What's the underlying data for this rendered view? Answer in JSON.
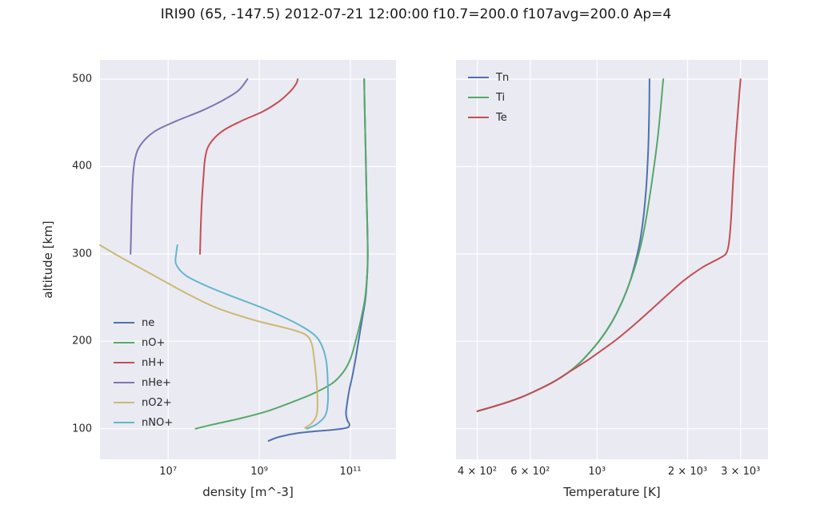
{
  "title": "IRI90 (65, -147.5) 2012-07-21 12:00:00 f10.7=200.0 f107avg=200.0 Ap=4",
  "style": {
    "axes_background": "#EAEAF2",
    "grid_color": "#FFFFFF",
    "text_color": "#262626"
  },
  "chart_data": [
    {
      "type": "line",
      "title": "",
      "xlabel": "density [m^-3]",
      "ylabel": "altitude [km]",
      "xscale": "log",
      "yscale": "linear",
      "xlim": [
        320000,
        1000000000000.0
      ],
      "ylim": [
        65,
        522
      ],
      "grid": true,
      "legend_position": "lower left",
      "xticks": [
        {
          "v": 10000000.0,
          "label": "10⁷"
        },
        {
          "v": 1000000000.0,
          "label": "10⁹"
        },
        {
          "v": 100000000000.0,
          "label": "10¹¹"
        }
      ],
      "yticks": [
        {
          "v": 100,
          "label": "100"
        },
        {
          "v": 200,
          "label": "200"
        },
        {
          "v": 300,
          "label": "300"
        },
        {
          "v": 400,
          "label": "400"
        },
        {
          "v": 500,
          "label": "500"
        }
      ],
      "series": [
        {
          "name": "ne",
          "color": "#4C72B0",
          "points": [
            [
              1600000000.0,
              86
            ],
            [
              2500000000.0,
              90
            ],
            [
              7000000000.0,
              95
            ],
            [
              65000000000.0,
              100
            ],
            [
              95000000000.0,
              104
            ],
            [
              85000000000.0,
              110
            ],
            [
              80000000000.0,
              118
            ],
            [
              85000000000.0,
              130
            ],
            [
              95000000000.0,
              145
            ],
            [
              110000000000.0,
              160
            ],
            [
              130000000000.0,
              180
            ],
            [
              150000000000.0,
              200
            ],
            [
              180000000000.0,
              225
            ],
            [
              215000000000.0,
              250
            ],
            [
              235000000000.0,
              280
            ],
            [
              240000000000.0,
              300
            ],
            [
              235000000000.0,
              330
            ],
            [
              225000000000.0,
              370
            ],
            [
              215000000000.0,
              420
            ],
            [
              205000000000.0,
              470
            ],
            [
              200000000000.0,
              500
            ]
          ]
        },
        {
          "name": "nO+",
          "color": "#55A868",
          "points": [
            [
              40000000.0,
              100
            ],
            [
              100000000.0,
              105
            ],
            [
              400000000.0,
              112
            ],
            [
              1500000000.0,
              120
            ],
            [
              5000000000.0,
              130
            ],
            [
              15000000000.0,
              140
            ],
            [
              40000000000.0,
              152
            ],
            [
              70000000000.0,
              165
            ],
            [
              100000000000.0,
              180
            ],
            [
              130000000000.0,
              200
            ],
            [
              170000000000.0,
              225
            ],
            [
              210000000000.0,
              250
            ],
            [
              235000000000.0,
              280
            ],
            [
              240000000000.0,
              300
            ],
            [
              235000000000.0,
              330
            ],
            [
              225000000000.0,
              370
            ],
            [
              215000000000.0,
              420
            ],
            [
              205000000000.0,
              470
            ],
            [
              200000000000.0,
              500
            ]
          ]
        },
        {
          "name": "nH+",
          "color": "#C44E52",
          "points": [
            [
              50000000.0,
              300
            ],
            [
              52000000.0,
              330
            ],
            [
              55000000.0,
              360
            ],
            [
              60000000.0,
              390
            ],
            [
              65000000.0,
              410
            ],
            [
              80000000.0,
              425
            ],
            [
              150000000.0,
              440
            ],
            [
              400000000.0,
              452
            ],
            [
              1200000000.0,
              463
            ],
            [
              2800000000.0,
              475
            ],
            [
              5000000000.0,
              487
            ],
            [
              6500000000.0,
              495
            ],
            [
              7000000000.0,
              500
            ]
          ]
        },
        {
          "name": "nHe+",
          "color": "#8172B2",
          "points": [
            [
              1500000.0,
              300
            ],
            [
              1550000.0,
              330
            ],
            [
              1600000.0,
              360
            ],
            [
              1700000.0,
              390
            ],
            [
              1900000.0,
              410
            ],
            [
              2500000.0,
              425
            ],
            [
              5000000.0,
              440
            ],
            [
              15000000.0,
              452
            ],
            [
              50000000.0,
              463
            ],
            [
              150000000.0,
              475
            ],
            [
              350000000.0,
              487
            ],
            [
              550000000.0,
              500
            ]
          ]
        },
        {
          "name": "nO2+",
          "color": "#CCB974",
          "points": [
            [
              320000.0,
              310
            ],
            [
              1000000.0,
              295
            ],
            [
              5000000.0,
              275
            ],
            [
              25000000.0,
              255
            ],
            [
              120000000.0,
              238
            ],
            [
              800000000.0,
              224
            ],
            [
              4000000000.0,
              215
            ],
            [
              10000000000.0,
              208
            ],
            [
              14000000000.0,
              198
            ],
            [
              16000000000.0,
              180
            ],
            [
              18000000000.0,
              155
            ],
            [
              19000000000.0,
              130
            ],
            [
              18000000000.0,
              115
            ],
            [
              14000000000.0,
              106
            ],
            [
              10000000000.0,
              101
            ]
          ]
        },
        {
          "name": "nNO+",
          "color": "#64B5CD",
          "points": [
            [
              16000000.0,
              310
            ],
            [
              15000000.0,
              300
            ],
            [
              15000000.0,
              288
            ],
            [
              25000000.0,
              275
            ],
            [
              80000000.0,
              262
            ],
            [
              300000000.0,
              250
            ],
            [
              1200000000.0,
              238
            ],
            [
              4000000000.0,
              226
            ],
            [
              10000000000.0,
              215
            ],
            [
              18000000000.0,
              205
            ],
            [
              25000000000.0,
              192
            ],
            [
              30000000000.0,
              175
            ],
            [
              32000000000.0,
              150
            ],
            [
              32000000000.0,
              130
            ],
            [
              28000000000.0,
              115
            ],
            [
              18000000000.0,
              105
            ],
            [
              11000000000.0,
              100
            ]
          ]
        }
      ]
    },
    {
      "type": "line",
      "title": "",
      "xlabel": "Temperature [K]",
      "ylabel": "",
      "xscale": "log",
      "yscale": "linear",
      "xlim": [
        340,
        3700
      ],
      "ylim": [
        65,
        522
      ],
      "grid": true,
      "legend_position": "upper left",
      "xticks": [
        {
          "v": 400,
          "label": "4 × 10²"
        },
        {
          "v": 600,
          "label": "6 × 10²"
        },
        {
          "v": 1000,
          "label": "10³"
        },
        {
          "v": 2000,
          "label": "2 × 10³"
        },
        {
          "v": 3000,
          "label": "3 × 10³"
        }
      ],
      "yticks": [
        {
          "v": 100,
          "label": ""
        },
        {
          "v": 200,
          "label": ""
        },
        {
          "v": 300,
          "label": ""
        },
        {
          "v": 400,
          "label": ""
        },
        {
          "v": 500,
          "label": ""
        }
      ],
      "series": [
        {
          "name": "Tn",
          "color": "#4C72B0",
          "points": [
            [
              400,
              120
            ],
            [
              480,
              128
            ],
            [
              560,
              136
            ],
            [
              640,
              145
            ],
            [
              720,
              154
            ],
            [
              800,
              164
            ],
            [
              880,
              176
            ],
            [
              960,
              190
            ],
            [
              1040,
              205
            ],
            [
              1120,
              222
            ],
            [
              1200,
              242
            ],
            [
              1280,
              266
            ],
            [
              1340,
              290
            ],
            [
              1390,
              315
            ],
            [
              1430,
              345
            ],
            [
              1460,
              380
            ],
            [
              1480,
              420
            ],
            [
              1490,
              460
            ],
            [
              1495,
              500
            ]
          ]
        },
        {
          "name": "Ti",
          "color": "#55A868",
          "points": [
            [
              400,
              120
            ],
            [
              480,
              128
            ],
            [
              560,
              136
            ],
            [
              640,
              145
            ],
            [
              720,
              154
            ],
            [
              800,
              164
            ],
            [
              880,
              176
            ],
            [
              960,
              190
            ],
            [
              1040,
              205
            ],
            [
              1120,
              222
            ],
            [
              1200,
              242
            ],
            [
              1280,
              266
            ],
            [
              1350,
              290
            ],
            [
              1420,
              320
            ],
            [
              1480,
              355
            ],
            [
              1540,
              395
            ],
            [
              1600,
              440
            ],
            [
              1660,
              500
            ]
          ]
        },
        {
          "name": "Te",
          "color": "#C44E52",
          "points": [
            [
              400,
              120
            ],
            [
              480,
              128
            ],
            [
              560,
              136
            ],
            [
              640,
              145
            ],
            [
              720,
              154
            ],
            [
              800,
              164
            ],
            [
              900,
              175
            ],
            [
              1020,
              188
            ],
            [
              1160,
              202
            ],
            [
              1320,
              218
            ],
            [
              1500,
              235
            ],
            [
              1700,
              252
            ],
            [
              1950,
              270
            ],
            [
              2250,
              285
            ],
            [
              2550,
              295
            ],
            [
              2700,
              302
            ],
            [
              2760,
              320
            ],
            [
              2800,
              350
            ],
            [
              2840,
              390
            ],
            [
              2890,
              430
            ],
            [
              2950,
              470
            ],
            [
              3000,
              500
            ]
          ]
        }
      ]
    }
  ]
}
